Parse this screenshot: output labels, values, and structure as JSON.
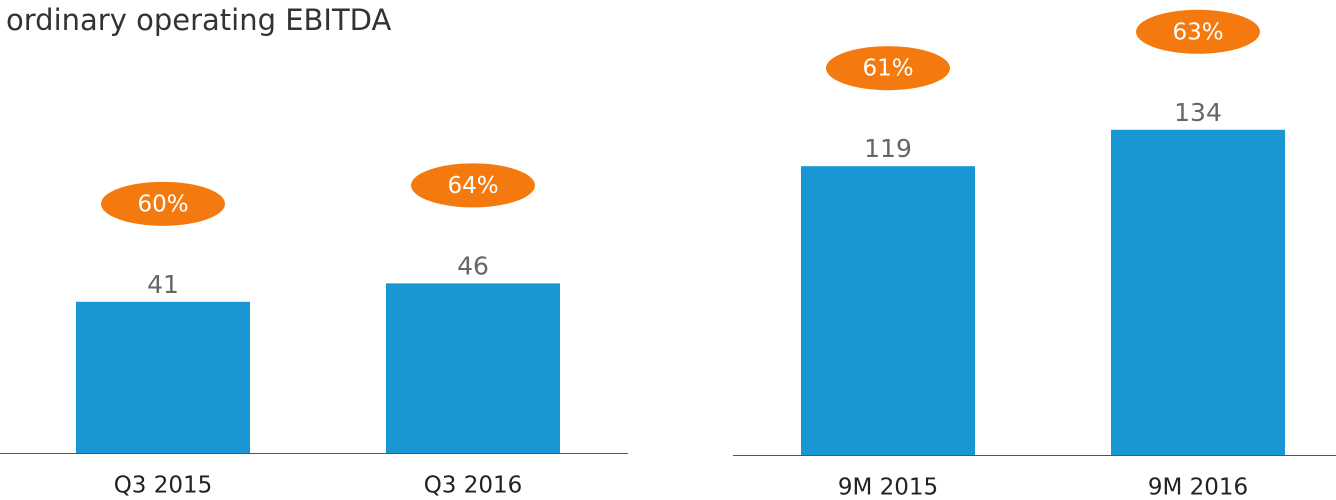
{
  "title": "ordinary operating EBITDA",
  "chart_data": [
    {
      "type": "bar",
      "categories": [
        "Q3 2015",
        "Q3 2016"
      ],
      "values": [
        41,
        46
      ],
      "margins": [
        60,
        64
      ],
      "margin_labels": [
        "60%",
        "64%"
      ],
      "color": "#1a96d4",
      "margin_color": "#f47a0f",
      "ylim": [
        0,
        112
      ]
    },
    {
      "type": "bar",
      "categories": [
        "9M 2015",
        "9M 2016"
      ],
      "values": [
        119,
        134
      ],
      "margins": [
        61,
        63
      ],
      "margin_labels": [
        "61%",
        "63%"
      ],
      "color": "#1a96d4",
      "margin_color": "#f47a0f",
      "ylim": [
        0,
        171
      ]
    }
  ]
}
